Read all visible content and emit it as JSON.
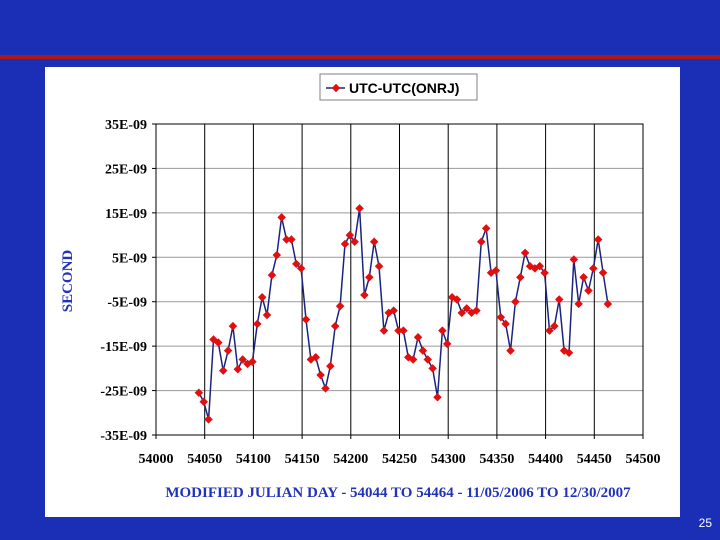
{
  "page": {
    "number": "25"
  },
  "colors": {
    "background": "#1a2fb5",
    "rule": "#b01818",
    "line": "#1a237e",
    "marker": "#e01010",
    "axis_title": "#2233bb"
  },
  "chart_data": {
    "type": "line",
    "title": "",
    "xlabel": "MODIFIED JULIAN DAY - 54044 TO 54464 - 11/05/2006 TO 12/30/2007",
    "ylabel": "SECOND",
    "xlim": [
      54000,
      54500
    ],
    "ylim": [
      -3.5e-08,
      3.5e-08
    ],
    "x_ticks": [
      54000,
      54050,
      54100,
      54150,
      54200,
      54250,
      54300,
      54350,
      54400,
      54450,
      54500
    ],
    "x_tick_labels": [
      "54000",
      "54050",
      "54100",
      "54150",
      "54200",
      "54250",
      "54300",
      "54350",
      "54400",
      "54450",
      "54500"
    ],
    "y_ticks": [
      3.5e-08,
      2.5e-08,
      1.5e-08,
      5e-09,
      -5e-09,
      -1.5e-08,
      -2.5e-08,
      -3.5e-08
    ],
    "y_tick_labels": [
      "35E-09",
      "25E-09",
      "15E-09",
      "5E-09",
      "-5E-09",
      "-15E-09",
      "-25E-09",
      "-35E-09"
    ],
    "grid": true,
    "legend": "top-center",
    "series": [
      {
        "name": "UTC-UTC(ONRJ)",
        "x": [
          54044,
          54049,
          54054,
          54059,
          54064,
          54069,
          54074,
          54079,
          54084,
          54089,
          54094,
          54099,
          54104,
          54109,
          54114,
          54119,
          54124,
          54129,
          54134,
          54139,
          54144,
          54149,
          54154,
          54159,
          54164,
          54169,
          54174,
          54179,
          54184,
          54189,
          54194,
          54199,
          54204,
          54209,
          54214,
          54219,
          54224,
          54229,
          54234,
          54239,
          54244,
          54249,
          54254,
          54259,
          54264,
          54269,
          54274,
          54279,
          54284,
          54289,
          54294,
          54299,
          54304,
          54309,
          54314,
          54319,
          54324,
          54329,
          54334,
          54339,
          54344,
          54349,
          54354,
          54359,
          54364,
          54369,
          54374,
          54379,
          54384,
          54389,
          54394,
          54399,
          54404,
          54409,
          54414,
          54419,
          54424,
          54429,
          54434,
          54439,
          54444,
          54449,
          54454,
          54459,
          54464
        ],
        "values": [
          -2.55e-08,
          -2.75e-08,
          -3.15e-08,
          -1.35e-08,
          -1.42e-08,
          -2.05e-08,
          -1.6e-08,
          -1.05e-08,
          -2.02e-08,
          -1.8e-08,
          -1.9e-08,
          -1.85e-08,
          -1e-08,
          -4e-09,
          -8e-09,
          1e-09,
          5.5e-09,
          1.4e-08,
          9e-09,
          9e-09,
          3.5e-09,
          2.5e-09,
          -9e-09,
          -1.8e-08,
          -1.75e-08,
          -2.15e-08,
          -2.45e-08,
          -1.95e-08,
          -1.05e-08,
          -6e-09,
          8e-09,
          1e-08,
          8.5e-09,
          1.6e-08,
          -3.5e-09,
          5e-10,
          8.5e-09,
          3e-09,
          -1.15e-08,
          -7.5e-09,
          -7e-09,
          -1.15e-08,
          -1.15e-08,
          -1.75e-08,
          -1.8e-08,
          -1.3e-08,
          -1.6e-08,
          -1.8e-08,
          -2e-08,
          -2.65e-08,
          -1.15e-08,
          -1.45e-08,
          -4e-09,
          -4.5e-09,
          -7.5e-09,
          -6.5e-09,
          -7.5e-09,
          -7e-09,
          8.5e-09,
          1.15e-08,
          1.5e-09,
          2e-09,
          -8.5e-09,
          -1e-08,
          -1.6e-08,
          -5e-09,
          5e-10,
          6e-09,
          3e-09,
          2.5e-09,
          3e-09,
          1.5e-09,
          -1.15e-08,
          -1.05e-08,
          -4.5e-09,
          -1.6e-08,
          -1.65e-08,
          4.5e-09,
          -5.5e-09,
          5e-10,
          -2.5e-09,
          2.5e-09,
          9e-09,
          1.5e-09,
          -5.5e-09
        ]
      }
    ]
  }
}
